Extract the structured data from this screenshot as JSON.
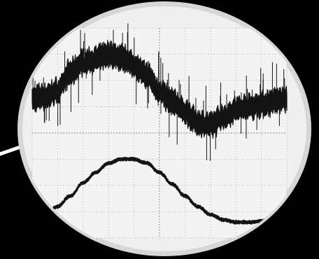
{
  "colors": {
    "background": "#000000",
    "lens_fill": "#efefef",
    "lens_rim": "#d6d6d6",
    "screen": "#f3f3f3",
    "grid": "#a9a9a9",
    "trace": "#141414",
    "pointer": "#ffffff"
  },
  "chart_data": {
    "type": "line",
    "title": "",
    "xlabel": "",
    "ylabel": "",
    "grid": true,
    "grid_divisions": {
      "x": 10,
      "y": 8
    },
    "xlim": [
      0,
      10
    ],
    "ylim": [
      -4,
      4
    ],
    "series": [
      {
        "x": [
          0,
          0.5,
          1,
          1.5,
          2,
          2.5,
          3,
          3.5,
          4,
          4.5,
          5,
          5.5,
          6,
          6.5,
          7,
          7.5,
          8,
          8.5,
          9,
          9.5,
          10
        ],
        "values": [
          1.3,
          1.4,
          1.6,
          2.3,
          2.7,
          2.8,
          3.0,
          2.9,
          2.6,
          2.2,
          1.6,
          1.2,
          0.8,
          0.4,
          0.3,
          0.6,
          0.9,
          1.0,
          1.1,
          1.2,
          1.3
        ],
        "noise_band": 0.9
      },
      {
        "x": [
          0,
          0.5,
          1,
          1.5,
          2,
          2.5,
          3,
          3.5,
          4,
          4.5,
          5,
          5.5,
          6,
          6.5,
          7,
          7.5,
          8,
          8.5,
          9,
          9.5,
          10
        ],
        "values": [
          -3.3,
          -3.1,
          -2.8,
          -2.4,
          -1.9,
          -1.5,
          -1.15,
          -1.0,
          -1.0,
          -1.15,
          -1.5,
          -1.95,
          -2.4,
          -2.8,
          -3.1,
          -3.3,
          -3.4,
          -3.4,
          -3.35,
          -3.25,
          -3.1
        ],
        "noise_band": 0.12
      }
    ]
  }
}
